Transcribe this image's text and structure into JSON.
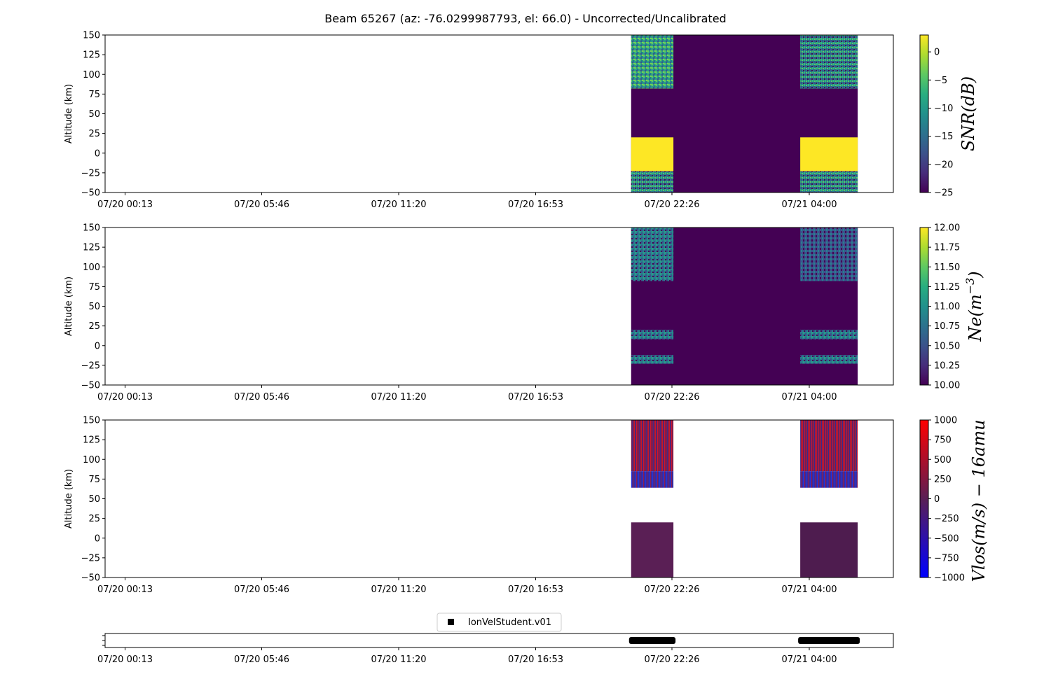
{
  "chart_data": {
    "title": "Beam 65267 (az: -76.0299987793, el: 66.0) - Uncorrected/Uncalibrated",
    "time_ticks": [
      "07/20 00:13",
      "07/20 05:46",
      "07/20 11:20",
      "07/20 16:53",
      "07/20 22:26",
      "07/21 04:00"
    ],
    "panels": [
      {
        "type": "heatmap",
        "ylabel": "Altitude (km)",
        "ylim": [
          -50,
          150
        ],
        "yticks": [
          "−50",
          "−25",
          "0",
          "25",
          "50",
          "75",
          "100",
          "125",
          "150"
        ],
        "colorbar": {
          "label": "SNR(dB)",
          "colormap": "viridis",
          "range": [
            -25,
            3
          ],
          "ticks": [
            {
              "v": 0,
              "t": "0"
            },
            {
              "v": -5,
              "t": "−5"
            },
            {
              "v": -10,
              "t": "−10"
            },
            {
              "v": -15,
              "t": "−15"
            },
            {
              "v": -20,
              "t": "−20"
            },
            {
              "v": -25,
              "t": "−25"
            }
          ]
        }
      },
      {
        "type": "heatmap",
        "ylabel": "Altitude (km)",
        "ylim": [
          -50,
          150
        ],
        "yticks": [
          "−50",
          "−25",
          "0",
          "25",
          "50",
          "75",
          "100",
          "125",
          "150"
        ],
        "colorbar": {
          "label_main": "Ne(m",
          "label_sup": "−3",
          "label_end": ")",
          "colormap": "viridis",
          "range": [
            10,
            12
          ],
          "ticks": [
            {
              "v": 12,
              "t": "12.00"
            },
            {
              "v": 11.75,
              "t": "11.75"
            },
            {
              "v": 11.5,
              "t": "11.50"
            },
            {
              "v": 11.25,
              "t": "11.25"
            },
            {
              "v": 11,
              "t": "11.00"
            },
            {
              "v": 10.75,
              "t": "10.75"
            },
            {
              "v": 10.5,
              "t": "10.50"
            },
            {
              "v": 10.25,
              "t": "10.25"
            },
            {
              "v": 10,
              "t": "10.00"
            }
          ]
        }
      },
      {
        "type": "heatmap",
        "ylabel": "Altitude (km)",
        "ylim": [
          -50,
          150
        ],
        "yticks": [
          "−50",
          "−25",
          "0",
          "25",
          "50",
          "75",
          "100",
          "125",
          "150"
        ],
        "colorbar": {
          "label": "Vlos(m/s) − 16amu",
          "colormap": "bwr",
          "range": [
            -1000,
            1000
          ],
          "ticks": [
            {
              "v": 1000,
              "t": "1000"
            },
            {
              "v": 750,
              "t": "750"
            },
            {
              "v": 500,
              "t": "500"
            },
            {
              "v": 250,
              "t": "250"
            },
            {
              "v": 0,
              "t": "0"
            },
            {
              "v": -250,
              "t": "−250"
            },
            {
              "v": -500,
              "t": "−500"
            },
            {
              "v": -750,
              "t": "−750"
            },
            {
              "v": -1000,
              "t": "−1000"
            }
          ]
        }
      },
      {
        "type": "scatter",
        "legend": "IonVelStudent.v01",
        "legend_position": "upper-center",
        "marker": "square",
        "marker_color": "#000000"
      }
    ],
    "data_blocks": [
      {
        "start": "07/20 20:46",
        "end": "07/20 22:29"
      },
      {
        "start": "07/21 03:38",
        "end": "07/21 05:58"
      }
    ]
  }
}
